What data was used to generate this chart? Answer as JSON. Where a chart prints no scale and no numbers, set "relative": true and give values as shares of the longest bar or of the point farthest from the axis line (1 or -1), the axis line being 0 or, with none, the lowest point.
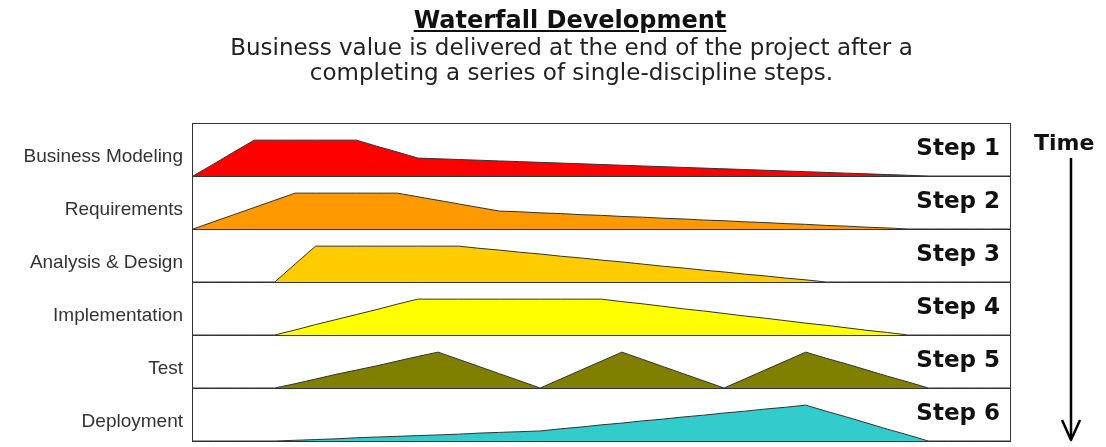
{
  "chart_data": [
    {
      "type": "area",
      "title": "Waterfall Development",
      "subtitle": "Business value is delivered at the end of the project after a completing a series of single-discipline steps.",
      "ylabel": "Business Modeling",
      "annotations": [
        "Step 1",
        "Time"
      ],
      "relative": true,
      "categories": [
        null,
        null,
        null,
        null,
        null,
        null,
        null,
        null,
        null,
        null,
        null,
        null,
        null,
        null,
        null,
        null,
        null,
        null,
        null,
        null,
        null,
        null,
        null,
        null,
        null,
        null,
        null,
        null,
        null,
        null,
        null,
        null,
        null,
        null,
        null,
        null,
        null,
        null,
        null,
        null,
        null
      ],
      "series": [
        {
          "color": "#ff0000",
          "values": [
            0,
            0.33,
            0.67,
            1,
            1,
            1,
            1,
            1,
            1,
            0.83,
            0.67,
            0.5,
            0.48,
            0.46,
            0.44,
            0.42,
            0.4,
            0.38,
            0.36,
            0.34,
            0.32,
            0.3,
            0.28,
            0.26,
            0.24,
            0.22,
            0.2,
            0.18,
            0.16,
            0.14,
            0.12,
            0.1,
            0.08,
            0.06,
            0.04,
            0.02,
            0,
            0,
            0,
            0,
            0
          ]
        }
      ]
    },
    {
      "type": "area",
      "ylabel": "Requirements",
      "annotations": [
        "Step 2"
      ],
      "relative": true,
      "categories": [
        null,
        null,
        null,
        null,
        null,
        null,
        null,
        null,
        null,
        null,
        null,
        null,
        null,
        null,
        null,
        null,
        null,
        null,
        null,
        null,
        null,
        null,
        null,
        null,
        null,
        null,
        null,
        null,
        null,
        null,
        null,
        null,
        null,
        null,
        null,
        null,
        null,
        null,
        null,
        null,
        null
      ],
      "series": [
        {
          "color": "#ff9900",
          "values": [
            0,
            0.2,
            0.4,
            0.6,
            0.8,
            1,
            1,
            1,
            1,
            1,
            1,
            0.9,
            0.8,
            0.7,
            0.6,
            0.5,
            0.48,
            0.45,
            0.43,
            0.4,
            0.38,
            0.35,
            0.33,
            0.3,
            0.28,
            0.25,
            0.23,
            0.2,
            0.18,
            0.15,
            0.13,
            0.1,
            0.08,
            0.05,
            0.03,
            0,
            0,
            0,
            0,
            0,
            0
          ]
        }
      ]
    },
    {
      "type": "area",
      "ylabel": "Analysis & Design",
      "annotations": [
        "Step 3"
      ],
      "relative": true,
      "categories": [
        null,
        null,
        null,
        null,
        null,
        null,
        null,
        null,
        null,
        null,
        null,
        null,
        null,
        null,
        null,
        null,
        null,
        null,
        null,
        null,
        null,
        null,
        null,
        null,
        null,
        null,
        null,
        null,
        null,
        null,
        null,
        null,
        null,
        null,
        null,
        null,
        null,
        null,
        null,
        null,
        null
      ],
      "series": [
        {
          "color": "#ffcc00",
          "values": [
            0,
            0,
            0,
            0,
            0,
            0.5,
            1,
            1,
            1,
            1,
            1,
            1,
            1,
            1,
            0.94,
            0.89,
            0.83,
            0.78,
            0.72,
            0.67,
            0.61,
            0.56,
            0.5,
            0.44,
            0.39,
            0.33,
            0.28,
            0.22,
            0.17,
            0.11,
            0.06,
            0,
            0,
            0,
            0,
            0,
            0,
            0,
            0,
            0,
            0
          ]
        }
      ]
    },
    {
      "type": "area",
      "ylabel": "Implementation",
      "annotations": [
        "Step 4"
      ],
      "relative": true,
      "categories": [
        null,
        null,
        null,
        null,
        null,
        null,
        null,
        null,
        null,
        null,
        null,
        null,
        null,
        null,
        null,
        null,
        null,
        null,
        null,
        null,
        null,
        null,
        null,
        null,
        null,
        null,
        null,
        null,
        null,
        null,
        null,
        null,
        null,
        null,
        null,
        null,
        null,
        null,
        null,
        null,
        null
      ],
      "series": [
        {
          "color": "#ffff00",
          "values": [
            0,
            0,
            0,
            0,
            0,
            0.14,
            0.29,
            0.43,
            0.57,
            0.71,
            0.86,
            1,
            1,
            1,
            1,
            1,
            1,
            1,
            1,
            1,
            1,
            0.93,
            0.87,
            0.8,
            0.73,
            0.67,
            0.6,
            0.53,
            0.47,
            0.4,
            0.33,
            0.27,
            0.2,
            0.13,
            0.07,
            0,
            0,
            0,
            0,
            0,
            0
          ]
        }
      ]
    },
    {
      "type": "area",
      "ylabel": "Test",
      "annotations": [
        "Step 5"
      ],
      "relative": true,
      "categories": [
        null,
        null,
        null,
        null,
        null,
        null,
        null,
        null,
        null,
        null,
        null,
        null,
        null,
        null,
        null,
        null,
        null,
        null,
        null,
        null,
        null,
        null,
        null,
        null,
        null,
        null,
        null,
        null,
        null,
        null,
        null,
        null,
        null,
        null,
        null,
        null,
        null,
        null,
        null,
        null,
        null
      ],
      "series": [
        {
          "color": "#808000",
          "values": [
            0,
            0,
            0,
            0,
            0,
            0.12,
            0.25,
            0.38,
            0.5,
            0.62,
            0.75,
            0.88,
            1,
            0.8,
            0.6,
            0.4,
            0.2,
            0,
            0.25,
            0.5,
            0.75,
            1,
            0.8,
            0.6,
            0.4,
            0.2,
            0,
            0.25,
            0.5,
            0.75,
            1,
            0.83,
            0.67,
            0.5,
            0.33,
            0.17,
            0,
            0,
            0,
            0,
            0
          ]
        }
      ]
    },
    {
      "type": "area",
      "ylabel": "Deployment",
      "annotations": [
        "Step 6"
      ],
      "relative": true,
      "categories": [
        null,
        null,
        null,
        null,
        null,
        null,
        null,
        null,
        null,
        null,
        null,
        null,
        null,
        null,
        null,
        null,
        null,
        null,
        null,
        null,
        null,
        null,
        null,
        null,
        null,
        null,
        null,
        null,
        null,
        null,
        null,
        null,
        null,
        null,
        null,
        null,
        null,
        null,
        null,
        null,
        null
      ],
      "series": [
        {
          "color": "#33cccc",
          "values": [
            0,
            0,
            0,
            0,
            0,
            0.02,
            0.04,
            0.06,
            0.09,
            0.11,
            0.13,
            0.15,
            0.17,
            0.19,
            0.22,
            0.24,
            0.26,
            0.28,
            0.34,
            0.39,
            0.45,
            0.5,
            0.56,
            0.61,
            0.67,
            0.72,
            0.78,
            0.83,
            0.89,
            0.94,
            1,
            0.83,
            0.67,
            0.5,
            0.33,
            0.17,
            0,
            0,
            0,
            0,
            0
          ]
        }
      ]
    }
  ]
}
